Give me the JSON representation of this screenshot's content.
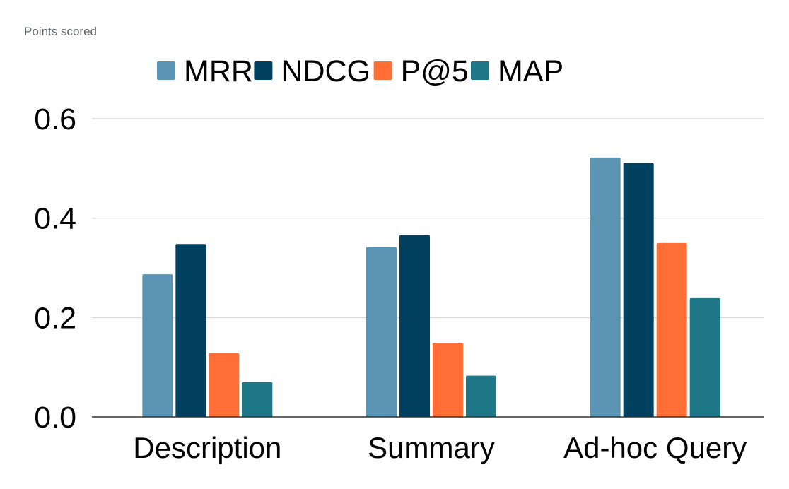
{
  "chart_data": {
    "type": "bar",
    "subtitle": "Points scored",
    "categories": [
      "Description",
      "Summary",
      "Ad-hoc Query"
    ],
    "series": [
      {
        "name": "MRR",
        "color": "#5b93b3",
        "values": [
          0.287,
          0.342,
          0.522
        ]
      },
      {
        "name": "NDCG",
        "color": "#01415f",
        "values": [
          0.348,
          0.366,
          0.511
        ]
      },
      {
        "name": "P@5",
        "color": "#fe6e35",
        "values": [
          0.128,
          0.149,
          0.35
        ]
      },
      {
        "name": "MAP",
        "color": "#1e7786",
        "values": [
          0.07,
          0.083,
          0.239
        ]
      }
    ],
    "ylim": [
      0,
      0.6
    ],
    "yticks": [
      "0.0",
      "0.2",
      "0.4",
      "0.6"
    ],
    "grid": true,
    "legend_position": "top"
  }
}
